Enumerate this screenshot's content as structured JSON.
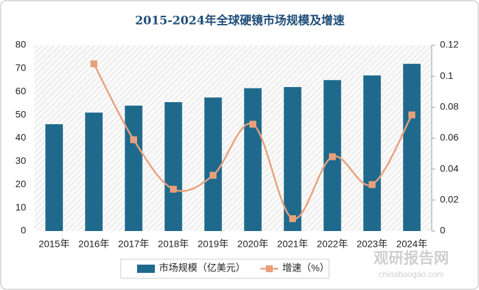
{
  "chart_data": {
    "type": "bar",
    "title": "2015-2024年全球硬镜市场规模及增速",
    "categories": [
      "2015年",
      "2016年",
      "2017年",
      "2018年",
      "2019年",
      "2020年",
      "2021年",
      "2022年",
      "2023年",
      "2024年"
    ],
    "series": [
      {
        "name": "市场规模（亿美元）",
        "type": "bar",
        "color": "#1f6a8c",
        "values": [
          46,
          51,
          54,
          55.5,
          57.5,
          61.5,
          62,
          65,
          67,
          72
        ]
      },
      {
        "name": "增速（%）",
        "type": "line",
        "axis": "y2",
        "color": "#e8a07c",
        "values": [
          null,
          0.108,
          0.059,
          0.027,
          0.036,
          0.069,
          0.008,
          0.048,
          0.03,
          0.075
        ]
      }
    ],
    "ylim": [
      0,
      80
    ],
    "yticks": [
      0,
      10,
      20,
      30,
      40,
      50,
      60,
      70,
      80
    ],
    "y2lim": [
      0,
      0.12
    ],
    "y2ticks": [
      0,
      0.02,
      0.04,
      0.06,
      0.08,
      0.1,
      0.12
    ],
    "legend": "bottom",
    "watermark": {
      "name": "观研报告网",
      "url": "chinabaogao.com"
    }
  }
}
